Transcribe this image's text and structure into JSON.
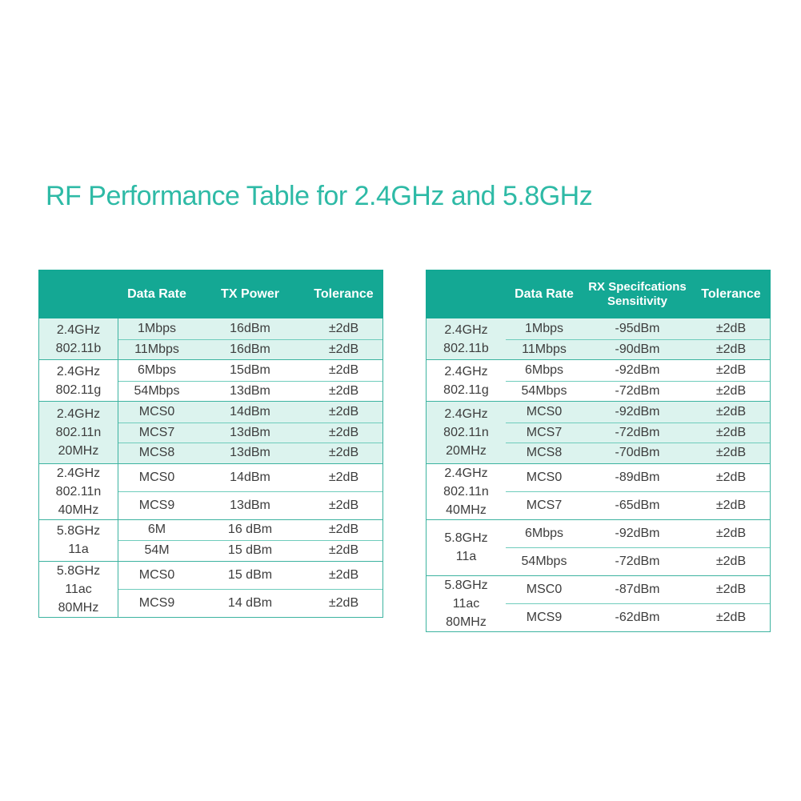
{
  "title": "RF Performance Table for 2.4GHz and 5.8GHz",
  "colors": {
    "header_bg": "#14A894",
    "tinted_row_bg": "#DCF3EE",
    "border_strong": "#3DB3A0",
    "border_light": "#6FCCBC",
    "title_text": "#2EBAA6",
    "body_text": "#3D3D3D",
    "header_text": "#FFFFFF"
  },
  "tx_table": {
    "columns": [
      "",
      "Data Rate",
      "TX Power",
      "Tolerance"
    ],
    "groups": [
      {
        "band": [
          "2.4GHz",
          "802.11b"
        ],
        "tinted": true,
        "tall": false,
        "rows": [
          [
            "1Mbps",
            "16dBm",
            "±2dB"
          ],
          [
            "11Mbps",
            "16dBm",
            "±2dB"
          ]
        ]
      },
      {
        "band": [
          "2.4GHz",
          "802.11g"
        ],
        "tinted": false,
        "tall": false,
        "rows": [
          [
            "6Mbps",
            "15dBm",
            "±2dB"
          ],
          [
            "54Mbps",
            "13dBm",
            "±2dB"
          ]
        ]
      },
      {
        "band": [
          "2.4GHz",
          "802.11n",
          "20MHz"
        ],
        "tinted": true,
        "tall": false,
        "rows": [
          [
            "MCS0",
            "14dBm",
            "±2dB"
          ],
          [
            "MCS7",
            "13dBm",
            "±2dB"
          ],
          [
            "MCS8",
            "13dBm",
            "±2dB"
          ]
        ]
      },
      {
        "band": [
          "2.4GHz",
          "802.11n",
          "40MHz"
        ],
        "tinted": false,
        "tall": true,
        "rows": [
          [
            "MCS0",
            "14dBm",
            "±2dB"
          ],
          [
            "MCS9",
            "13dBm",
            "±2dB"
          ]
        ]
      },
      {
        "band": [
          "5.8GHz",
          "11a"
        ],
        "tinted": false,
        "tall": false,
        "rows": [
          [
            "6M",
            "16 dBm",
            "±2dB"
          ],
          [
            "54M",
            "15 dBm",
            "±2dB"
          ]
        ]
      },
      {
        "band": [
          "5.8GHz",
          "11ac",
          "80MHz"
        ],
        "tinted": false,
        "tall": true,
        "rows": [
          [
            "MCS0",
            "15 dBm",
            "±2dB"
          ],
          [
            "MCS9",
            "14 dBm",
            "±2dB"
          ]
        ]
      }
    ]
  },
  "rx_table": {
    "columns": [
      "",
      "Data Rate",
      [
        "RX Specifcations",
        "Sensitivity"
      ],
      "Tolerance"
    ],
    "groups": [
      {
        "band": [
          "2.4GHz",
          "802.11b"
        ],
        "tinted": true,
        "tall": false,
        "rows": [
          [
            "1Mbps",
            "-95dBm",
            "±2dB"
          ],
          [
            "11Mbps",
            "-90dBm",
            "±2dB"
          ]
        ]
      },
      {
        "band": [
          "2.4GHz",
          "802.11g"
        ],
        "tinted": false,
        "tall": false,
        "rows": [
          [
            "6Mbps",
            "-92dBm",
            "±2dB"
          ],
          [
            "54Mbps",
            "-72dBm",
            "±2dB"
          ]
        ]
      },
      {
        "band": [
          "2.4GHz",
          "802.11n",
          "20MHz"
        ],
        "tinted": true,
        "tall": false,
        "rows": [
          [
            "MCS0",
            "-92dBm",
            "±2dB"
          ],
          [
            "MCS7",
            "-72dBm",
            "±2dB"
          ],
          [
            "MCS8",
            "-70dBm",
            "±2dB"
          ]
        ]
      },
      {
        "band": [
          "2.4GHz",
          "802.11n",
          "40MHz"
        ],
        "tinted": false,
        "tall": true,
        "rows": [
          [
            "MCS0",
            "-89dBm",
            "±2dB"
          ],
          [
            "MCS7",
            "-65dBm",
            "±2dB"
          ]
        ]
      },
      {
        "band": [
          "5.8GHz",
          "11a"
        ],
        "tinted": false,
        "tall": true,
        "rows": [
          [
            "6Mbps",
            "-92dBm",
            "±2dB"
          ],
          [
            "54Mbps",
            "-72dBm",
            "±2dB"
          ]
        ]
      },
      {
        "band": [
          "5.8GHz",
          "11ac",
          "80MHz"
        ],
        "tinted": false,
        "tall": true,
        "rows": [
          [
            "MSC0",
            "-87dBm",
            "±2dB"
          ],
          [
            "MCS9",
            "-62dBm",
            "±2dB"
          ]
        ]
      }
    ]
  }
}
